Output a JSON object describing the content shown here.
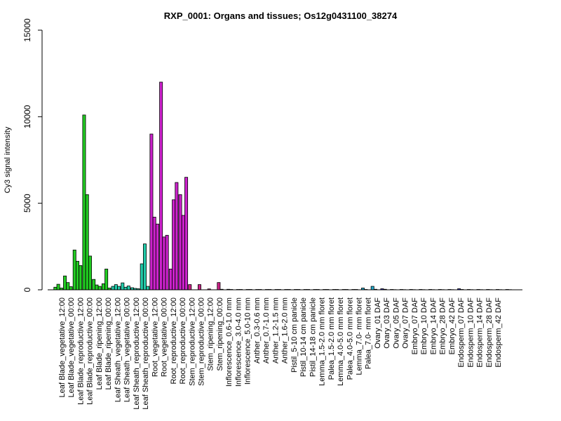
{
  "chart_data": {
    "type": "bar",
    "title": "RXP_0001: Organs and tissues; Os12g0431100_38274",
    "xlabel": "",
    "ylabel": "Cy3 signal intensity",
    "ylim": [
      0,
      15000
    ],
    "yticks": [
      "0",
      "5000",
      "10000",
      "15000"
    ],
    "grid": false,
    "legend": "none",
    "colors": {
      "leaf": "#22cc22",
      "sheath": "#22ccaa",
      "root": "#cc22cc",
      "stem": "#cc2288",
      "floral": "#22aacc",
      "seed": "#2222cc"
    },
    "x_labels": [
      "Leaf Blade_vegetative_12:00",
      "Leaf Blade_vegetative_00:00",
      "Leaf Blade_reproductive_12:00",
      "Leaf Blade_reproductive_00:00",
      "Leaf Blade_ripening_12:00",
      "Leaf Blade_ripening_00:00",
      "Leaf Sheath_vegetative_12:00",
      "Leaf Sheath_vegetative_00:00",
      "Leaf Sheath_reproductive_12:00",
      "Leaf Sheath_reproductive_00:00",
      "Root_vegetative_12:00",
      "Root_vegetative_00:00",
      "Root_reproductive_12:00",
      "Root_reproductive_00:00",
      "Stem_reproductive_12:00",
      "Stem_reproductive_00:00",
      "Stem_ripening_12:00",
      "Stem_ripening_00:00",
      "Inflorescence_0.6-1.0 mm",
      "Inflorescence_3.0-4.0 mm",
      "Inflorescence_5.0-10 mm",
      "Anther_0.3-0.6 mm",
      "Anther_0.7-1.0 mm",
      "Anther_1.2-1.5 mm",
      "Anther_1.6-2.0 mm",
      "Pistil_5-10 cm panicle",
      "Pistil_10-14 cm panicle",
      "Pistil_14-18 cm panicle",
      "Lemma_1.5-2.0 mm floret",
      "Palea_1.5-2.0 mm floret",
      "Lemma_4.0-5.0 mm floret",
      "Palea_4.0-5.0 mm floret",
      "Lemma_7.0- mm floret",
      "Palea_7.0- mm floret",
      "Ovary_01 DAF",
      "Ovary_03 DAF",
      "Ovary_05 DAF",
      "Ovary_07 DAF",
      "Embryo_07 DAF",
      "Embryo_10 DAF",
      "Embryo_14 DAF",
      "Embryo_28 DAF",
      "Embryo_42 DAF",
      "Endosperm_07 DAF",
      "Endosperm_10 DAF",
      "Endosperm_14 DAF",
      "Endosperm_28 DAF",
      "Endosperm_42 DAF"
    ],
    "groups": [
      {
        "group": "leaf",
        "values": [
          150,
          320,
          100
        ]
      },
      {
        "group": "leaf",
        "values": [
          800,
          420,
          180
        ]
      },
      {
        "group": "leaf",
        "values": [
          2300,
          1650,
          1400
        ]
      },
      {
        "group": "leaf",
        "values": [
          10100,
          5500,
          1950
        ]
      },
      {
        "group": "leaf",
        "values": [
          600,
          280,
          200
        ]
      },
      {
        "group": "leaf",
        "values": [
          350,
          1200,
          100
        ]
      },
      {
        "group": "sheath",
        "values": [
          200,
          300,
          200
        ]
      },
      {
        "group": "sheath",
        "values": [
          400,
          150,
          220
        ]
      },
      {
        "group": "sheath",
        "values": [
          120,
          80,
          60
        ]
      },
      {
        "group": "sheath",
        "values": [
          1500,
          2650,
          200
        ]
      },
      {
        "group": "root",
        "values": [
          9000,
          4200,
          3800
        ]
      },
      {
        "group": "root",
        "values": [
          12000,
          3050,
          3150
        ]
      },
      {
        "group": "root",
        "values": [
          1200,
          5200,
          6200
        ]
      },
      {
        "group": "root",
        "values": [
          5500,
          4300,
          6500
        ]
      },
      {
        "group": "stem",
        "values": [
          300,
          0,
          0
        ]
      },
      {
        "group": "stem",
        "values": [
          300,
          0,
          0
        ]
      },
      {
        "group": "stem",
        "values": [
          50,
          0,
          0
        ]
      },
      {
        "group": "stem",
        "values": [
          420,
          30,
          0
        ]
      },
      {
        "group": "floral",
        "values": [
          30,
          20,
          0
        ]
      },
      {
        "group": "floral",
        "values": [
          20,
          20,
          0
        ]
      },
      {
        "group": "floral",
        "values": [
          20,
          20,
          0
        ]
      },
      {
        "group": "floral",
        "values": [
          20,
          20,
          0
        ]
      },
      {
        "group": "floral",
        "values": [
          20,
          20,
          0
        ]
      },
      {
        "group": "floral",
        "values": [
          20,
          20,
          0
        ]
      },
      {
        "group": "floral",
        "values": [
          20,
          20,
          0
        ]
      },
      {
        "group": "floral",
        "values": [
          20,
          20,
          0
        ]
      },
      {
        "group": "floral",
        "values": [
          20,
          20,
          0
        ]
      },
      {
        "group": "floral",
        "values": [
          20,
          20,
          0
        ]
      },
      {
        "group": "floral",
        "values": [
          20,
          20,
          0
        ]
      },
      {
        "group": "floral",
        "values": [
          20,
          20,
          0
        ]
      },
      {
        "group": "floral",
        "values": [
          20,
          20,
          0
        ]
      },
      {
        "group": "floral",
        "values": [
          20,
          20,
          0
        ]
      },
      {
        "group": "floral",
        "values": [
          100,
          20,
          0
        ]
      },
      {
        "group": "floral",
        "values": [
          200,
          30,
          0
        ]
      },
      {
        "group": "seed",
        "values": [
          60,
          30,
          0
        ]
      },
      {
        "group": "seed",
        "values": [
          20,
          10,
          0
        ]
      },
      {
        "group": "seed",
        "values": [
          20,
          10,
          0
        ]
      },
      {
        "group": "seed",
        "values": [
          20,
          10,
          0
        ]
      },
      {
        "group": "seed",
        "values": [
          20,
          10,
          0
        ]
      },
      {
        "group": "seed",
        "values": [
          20,
          10,
          0
        ]
      },
      {
        "group": "seed",
        "values": [
          20,
          10,
          0
        ]
      },
      {
        "group": "seed",
        "values": [
          20,
          10,
          0
        ]
      },
      {
        "group": "seed",
        "values": [
          60,
          20,
          0
        ]
      },
      {
        "group": "seed",
        "values": [
          20,
          10,
          0
        ]
      },
      {
        "group": "seed",
        "values": [
          20,
          10,
          0
        ]
      },
      {
        "group": "seed",
        "values": [
          20,
          10,
          0
        ]
      },
      {
        "group": "seed",
        "values": [
          20,
          10,
          0
        ]
      },
      {
        "group": "seed",
        "values": [
          20,
          10,
          0
        ]
      }
    ]
  }
}
